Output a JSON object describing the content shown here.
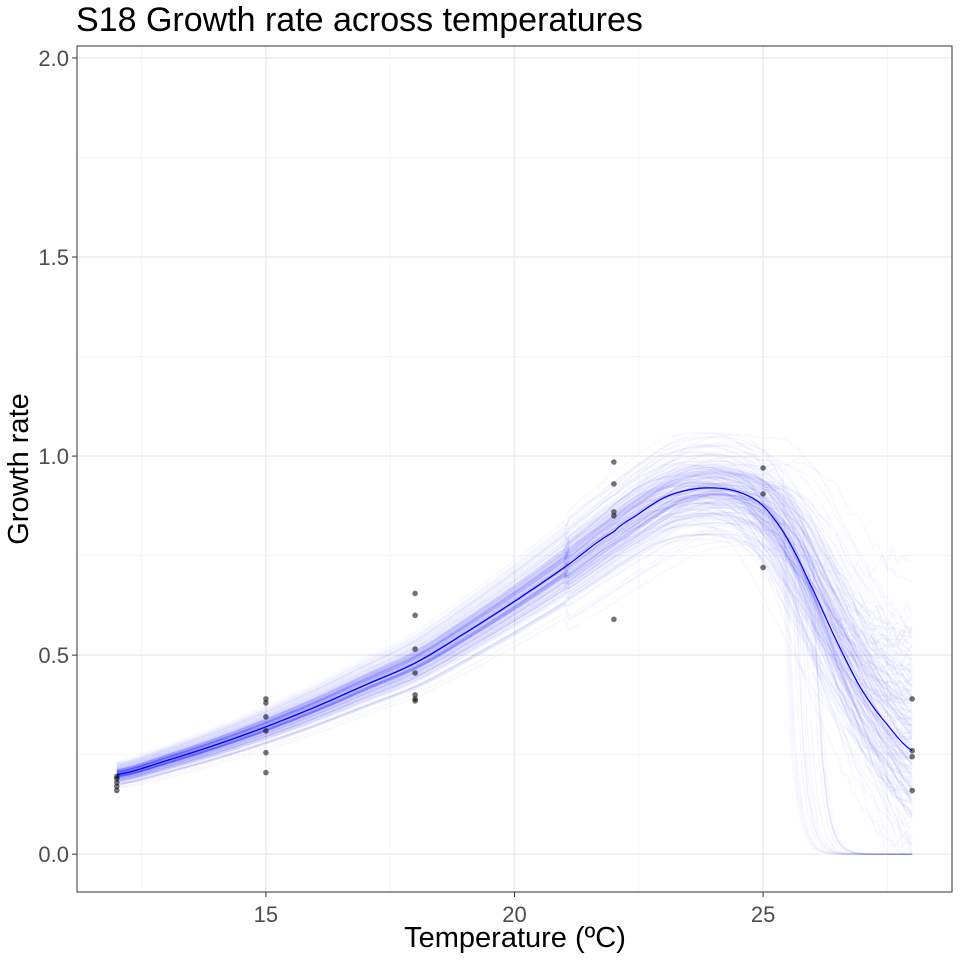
{
  "chart_data": {
    "type": "scatter",
    "title": "S18 Growth rate across temperatures",
    "xlabel": "Temperature (ºC)",
    "ylabel": "Growth rate",
    "xlim": [
      11.2,
      28.8
    ],
    "ylim": [
      -0.095,
      2.03
    ],
    "x_ticks": [
      15,
      20,
      25
    ],
    "x_tick_labels": [
      "15",
      "20",
      "25"
    ],
    "x_minor_grid": [
      12.5,
      17.5,
      22.5,
      27.5
    ],
    "y_ticks": [
      0.0,
      0.5,
      1.0,
      1.5,
      2.0
    ],
    "y_tick_labels": [
      "0.0",
      "0.5",
      "1.0",
      "1.5",
      "2.0"
    ],
    "y_minor_grid": [
      0.25,
      0.75,
      1.25,
      1.75
    ],
    "grid": true,
    "legend": "none",
    "colors": {
      "fit": "#0000ff",
      "samples": "#0000ff",
      "points": "#000000",
      "grid": "#ebebeb",
      "panel_border": "#333333"
    },
    "series": [
      {
        "kind": "points",
        "x": [
          12,
          12,
          12,
          12,
          12,
          15,
          15,
          15,
          15,
          15,
          15,
          18,
          18,
          18,
          18,
          18,
          18,
          18,
          22,
          22,
          22,
          22,
          22,
          25,
          25,
          25,
          28,
          28,
          28,
          28
        ],
        "y": [
          0.195,
          0.19,
          0.18,
          0.17,
          0.16,
          0.39,
          0.38,
          0.345,
          0.31,
          0.255,
          0.205,
          0.655,
          0.6,
          0.515,
          0.455,
          0.4,
          0.39,
          0.385,
          0.985,
          0.93,
          0.86,
          0.85,
          0.59,
          0.97,
          0.905,
          0.72,
          0.39,
          0.26,
          0.245,
          0.16
        ]
      },
      {
        "kind": "fitted-curve",
        "x": [
          12,
          13,
          14,
          15,
          16,
          17,
          18,
          19,
          20,
          21,
          22,
          22.5,
          23,
          23.5,
          24,
          24.5,
          25,
          25.5,
          26,
          26.5,
          27,
          27.5,
          28
        ],
        "y": [
          0.2,
          0.235,
          0.275,
          0.32,
          0.37,
          0.425,
          0.48,
          0.555,
          0.635,
          0.72,
          0.81,
          0.855,
          0.895,
          0.915,
          0.92,
          0.91,
          0.875,
          0.79,
          0.665,
          0.53,
          0.41,
          0.325,
          0.26
        ]
      }
    ],
    "uncertainty_samples": 220
  }
}
